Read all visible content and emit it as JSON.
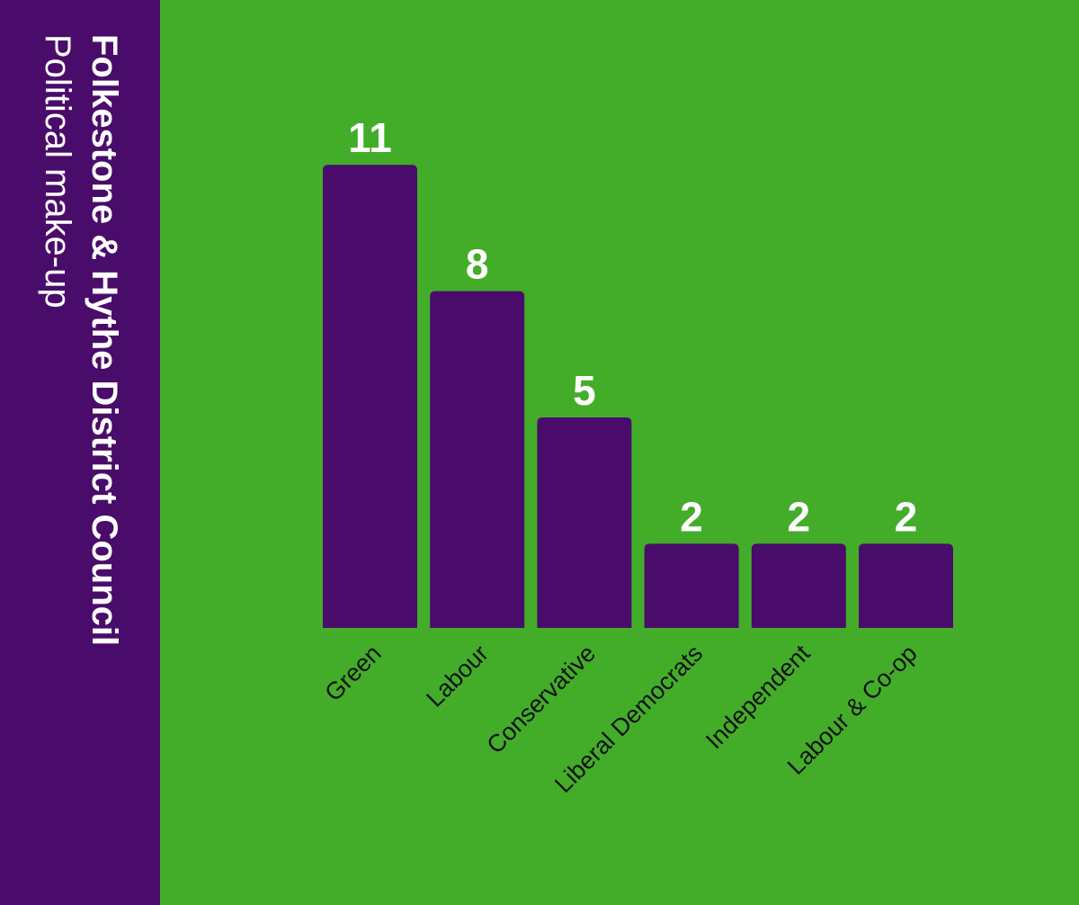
{
  "colors": {
    "sidebar_bg": "#4a0c6b",
    "chart_bg": "#43ad2a",
    "bar": "#4a0c6b",
    "value_label": "#ffffff",
    "category_label": "#111111",
    "title_text": "#ffffff"
  },
  "title": {
    "main": "Folkestone & Hythe District Council",
    "sub": "Political make-up"
  },
  "chart_data": {
    "type": "bar",
    "title": "Folkestone & Hythe District Council Political make-up",
    "xlabel": "",
    "ylabel": "",
    "categories": [
      "Green",
      "Labour",
      "Conservative",
      "Liberal Democrats",
      "Independent",
      "Labour & Co-op"
    ],
    "values": [
      11,
      8,
      5,
      2,
      2,
      2
    ],
    "ylim": [
      0,
      11
    ],
    "grid": false,
    "legend": "none"
  }
}
